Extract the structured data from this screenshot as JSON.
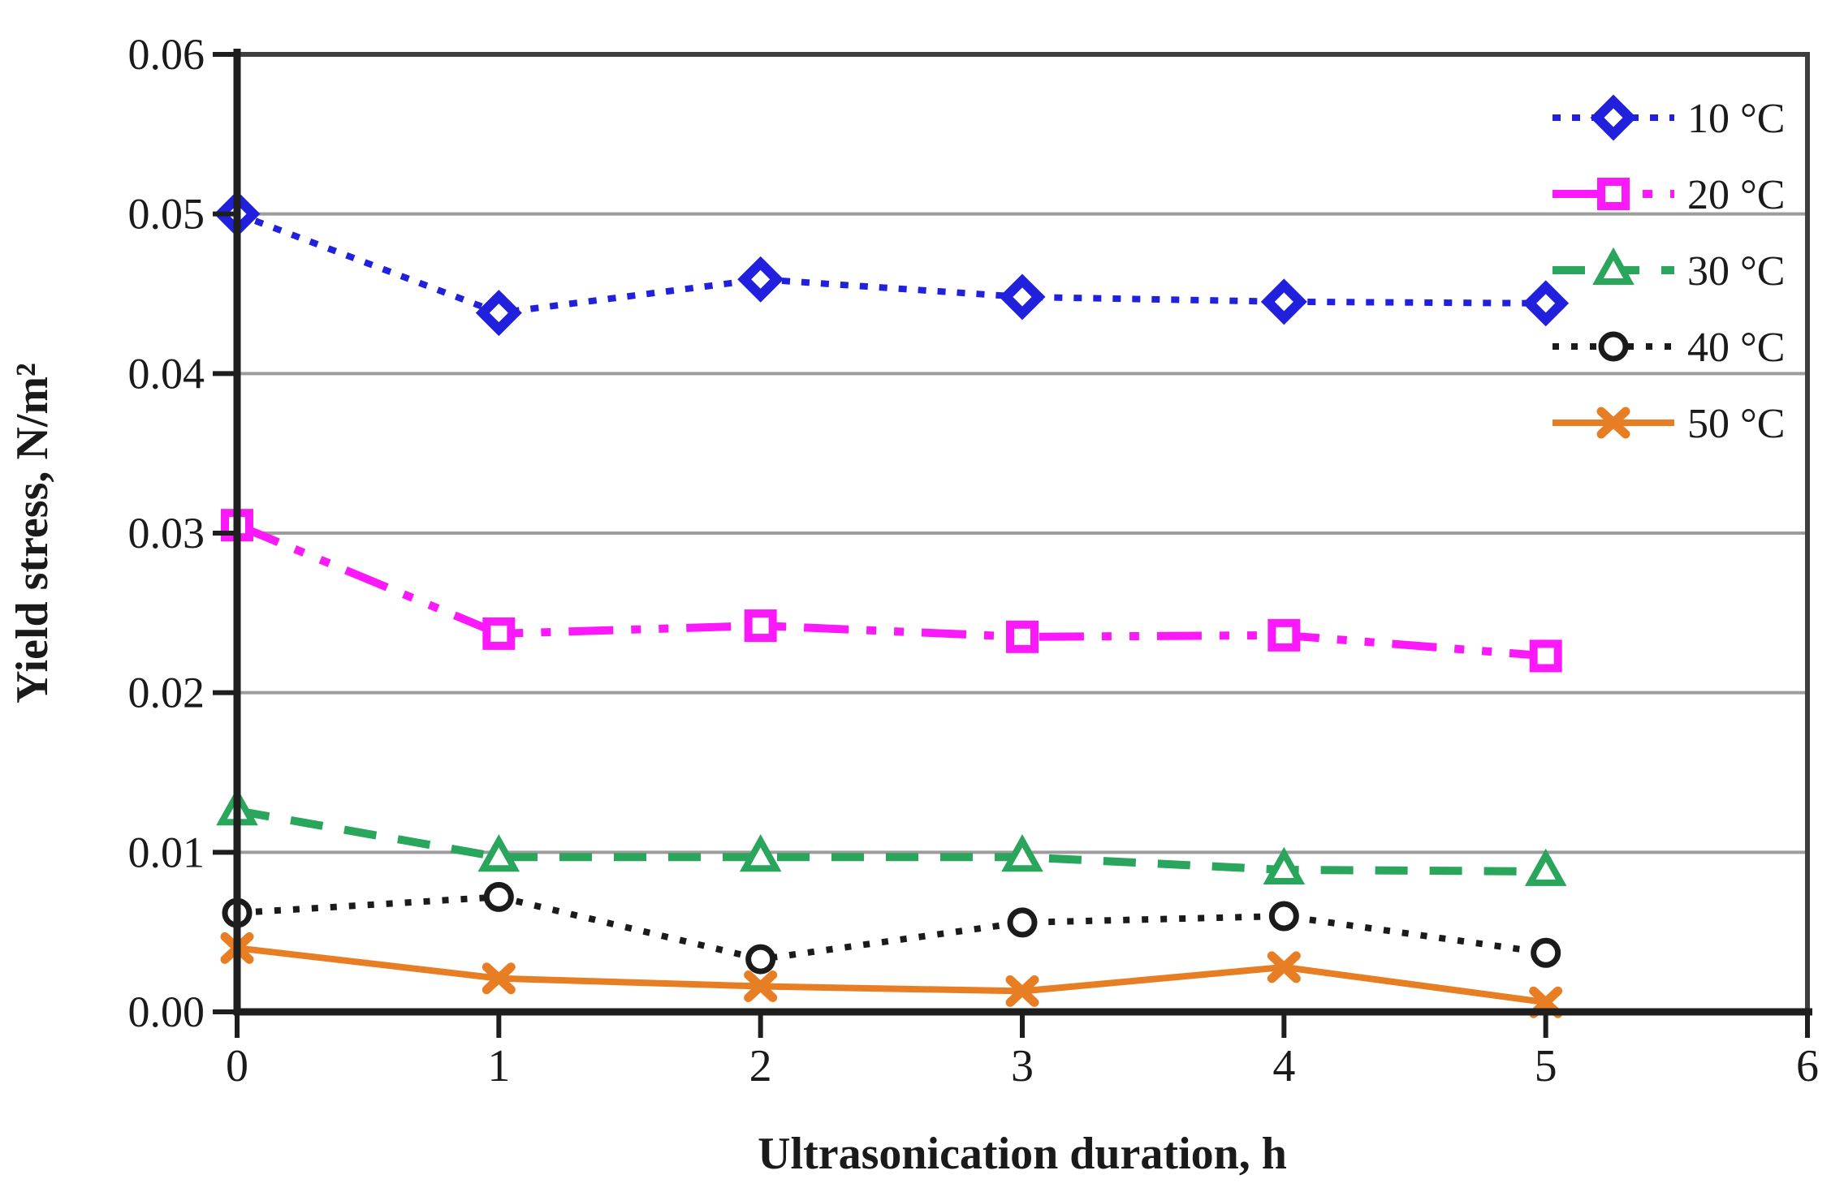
{
  "chart_data": {
    "type": "line",
    "title": "",
    "xlabel": "Ultrasonication duration, h",
    "ylabel": "Yield stress, N/m²",
    "x": [
      0,
      1,
      2,
      3,
      4,
      5
    ],
    "xlim": [
      0,
      6
    ],
    "ylim": [
      0,
      0.06
    ],
    "xticks": [
      "0",
      "1",
      "2",
      "3",
      "4",
      "5",
      "6"
    ],
    "yticks": [
      "0.00",
      "0.01",
      "0.02",
      "0.03",
      "0.04",
      "0.05",
      "0.06"
    ],
    "grid": "horizontal",
    "legend_position": "top-right-inside",
    "colors": {
      "axis": "#1e1e1e",
      "box_border": "#3f3f3f",
      "gridline": "#9c9c9c",
      "text": "#1a1a1a"
    },
    "series": [
      {
        "name": "10 °C",
        "color": "#2121dd",
        "line_style": "dotted",
        "marker": "diamond",
        "values": [
          0.05,
          0.0438,
          0.0459,
          0.0448,
          0.0445,
          0.0444
        ]
      },
      {
        "name": "20 °C",
        "color": "#fb19fb",
        "line_style": "dash-dot-dot",
        "marker": "square",
        "values": [
          0.0305,
          0.0237,
          0.0242,
          0.0235,
          0.0236,
          0.0223
        ]
      },
      {
        "name": "30 °C",
        "color": "#2aa55c",
        "line_style": "dashed",
        "marker": "triangle",
        "values": [
          0.0126,
          0.0097,
          0.0097,
          0.0097,
          0.0089,
          0.0088
        ]
      },
      {
        "name": "40 °C",
        "color": "#1b1b1b",
        "line_style": "dotted-fine",
        "marker": "circle",
        "values": [
          0.0062,
          0.0072,
          0.0033,
          0.0056,
          0.006,
          0.0037
        ]
      },
      {
        "name": "50 °C",
        "color": "#e87e23",
        "line_style": "solid",
        "marker": "x",
        "values": [
          0.004,
          0.0021,
          0.0016,
          0.0013,
          0.0028,
          0.0006
        ]
      }
    ]
  }
}
